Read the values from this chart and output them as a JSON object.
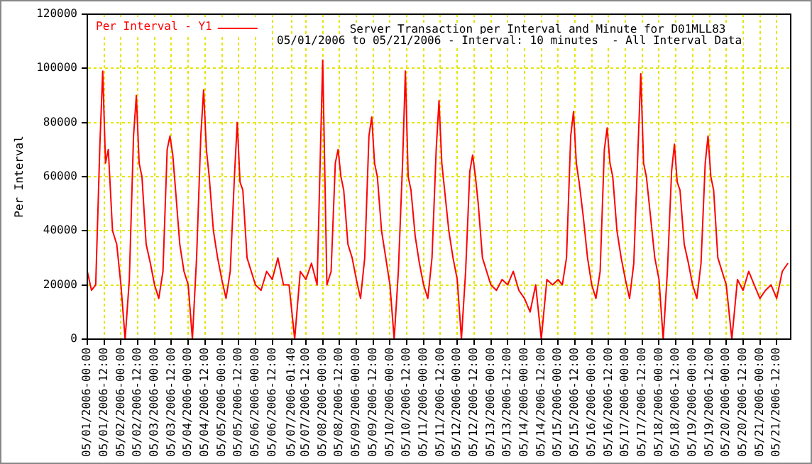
{
  "chart_data": {
    "type": "line",
    "title": "Server Transaction per Interval and Minute for D01MLL83",
    "subtitle": "05/01/2006 to 05/21/2006 - Interval: 10 minutes  - All Interval Data",
    "ylabel": "Per Interval",
    "legend": "top left",
    "grid": true,
    "marker": "none",
    "line_style": "solid",
    "xlim": [
      "2006-05-01T00:00",
      "2006-05-21T22:00"
    ],
    "xticks": [
      {
        "value": "2006-05-01T00:00",
        "label": "05/01/2006-00:00"
      },
      {
        "value": "2006-05-01T12:00",
        "label": "05/01/2006-12:00"
      },
      {
        "value": "2006-05-02T00:00",
        "label": "05/02/2006-00:00"
      },
      {
        "value": "2006-05-02T12:00",
        "label": "05/02/2006-12:00"
      },
      {
        "value": "2006-05-03T00:00",
        "label": "05/03/2006-00:00"
      },
      {
        "value": "2006-05-03T12:00",
        "label": "05/03/2006-12:00"
      },
      {
        "value": "2006-05-04T00:00",
        "label": "05/04/2006-00:00"
      },
      {
        "value": "2006-05-04T12:00",
        "label": "05/04/2006-12:00"
      },
      {
        "value": "2006-05-05T00:00",
        "label": "05/05/2006-00:00"
      },
      {
        "value": "2006-05-05T12:00",
        "label": "05/05/2006-12:00"
      },
      {
        "value": "2006-05-06T00:00",
        "label": "05/06/2006-00:00"
      },
      {
        "value": "2006-05-06T12:00",
        "label": "05/06/2006-12:00"
      },
      {
        "value": "2006-05-07T01:40",
        "label": "05/07/2006-01:40"
      },
      {
        "value": "2006-05-07T12:00",
        "label": "05/07/2006-12:00"
      },
      {
        "value": "2006-05-08T00:00",
        "label": "05/08/2006-00:00"
      },
      {
        "value": "2006-05-08T12:00",
        "label": "05/08/2006-12:00"
      },
      {
        "value": "2006-05-09T00:00",
        "label": "05/09/2006-00:00"
      },
      {
        "value": "2006-05-09T12:00",
        "label": "05/09/2006-12:00"
      },
      {
        "value": "2006-05-10T00:00",
        "label": "05/10/2006-00:00"
      },
      {
        "value": "2006-05-10T12:00",
        "label": "05/10/2006-12:00"
      },
      {
        "value": "2006-05-11T00:00",
        "label": "05/11/2006-00:00"
      },
      {
        "value": "2006-05-11T12:00",
        "label": "05/11/2006-12:00"
      },
      {
        "value": "2006-05-12T00:00",
        "label": "05/12/2006-00:00"
      },
      {
        "value": "2006-05-12T12:00",
        "label": "05/12/2006-12:00"
      },
      {
        "value": "2006-05-13T00:00",
        "label": "05/13/2006-00:00"
      },
      {
        "value": "2006-05-13T12:00",
        "label": "05/13/2006-12:00"
      },
      {
        "value": "2006-05-14T00:00",
        "label": "05/14/2006-00:00"
      },
      {
        "value": "2006-05-14T12:00",
        "label": "05/14/2006-12:00"
      },
      {
        "value": "2006-05-15T00:00",
        "label": "05/15/2006-00:00"
      },
      {
        "value": "2006-05-15T12:00",
        "label": "05/15/2006-12:00"
      },
      {
        "value": "2006-05-16T00:00",
        "label": "05/16/2006-00:00"
      },
      {
        "value": "2006-05-16T12:00",
        "label": "05/16/2006-12:00"
      },
      {
        "value": "2006-05-17T00:00",
        "label": "05/17/2006-00:00"
      },
      {
        "value": "2006-05-17T12:00",
        "label": "05/17/2006-12:00"
      },
      {
        "value": "2006-05-18T00:00",
        "label": "05/18/2006-00:00"
      },
      {
        "value": "2006-05-18T12:00",
        "label": "05/18/2006-12:00"
      },
      {
        "value": "2006-05-19T00:00",
        "label": "05/19/2006-00:00"
      },
      {
        "value": "2006-05-19T12:00",
        "label": "05/19/2006-12:00"
      },
      {
        "value": "2006-05-20T00:00",
        "label": "05/20/2006-00:00"
      },
      {
        "value": "2006-05-20T12:00",
        "label": "05/20/2006-12:00"
      },
      {
        "value": "2006-05-21T00:00",
        "label": "05/21/2006-00:00"
      },
      {
        "value": "2006-05-21T12:00",
        "label": "05/21/2006-12:00"
      }
    ],
    "ylim": [
      0,
      120000
    ],
    "yticks": [
      0,
      20000,
      40000,
      60000,
      80000,
      100000,
      120000
    ],
    "series": [
      {
        "name": "Per Interval - Y1",
        "color": "#ff0000",
        "x": [
          "2006-05-01T00:00",
          "2006-05-01T03:00",
          "2006-05-01T06:00",
          "2006-05-01T09:00",
          "2006-05-01T11:00",
          "2006-05-01T13:00",
          "2006-05-01T15:00",
          "2006-05-01T18:00",
          "2006-05-01T21:00",
          "2006-05-02T00:00",
          "2006-05-02T03:00",
          "2006-05-02T06:00",
          "2006-05-02T09:00",
          "2006-05-02T11:00",
          "2006-05-02T13:00",
          "2006-05-02T15:00",
          "2006-05-02T18:00",
          "2006-05-02T21:00",
          "2006-05-03T00:00",
          "2006-05-03T03:00",
          "2006-05-03T06:00",
          "2006-05-03T09:00",
          "2006-05-03T11:00",
          "2006-05-03T13:00",
          "2006-05-03T15:00",
          "2006-05-03T18:00",
          "2006-05-03T21:00",
          "2006-05-04T00:00",
          "2006-05-04T03:00",
          "2006-05-04T06:00",
          "2006-05-04T09:00",
          "2006-05-04T11:00",
          "2006-05-04T13:00",
          "2006-05-04T15:00",
          "2006-05-04T18:00",
          "2006-05-04T21:00",
          "2006-05-05T00:00",
          "2006-05-05T03:00",
          "2006-05-05T06:00",
          "2006-05-05T09:00",
          "2006-05-05T11:00",
          "2006-05-05T13:00",
          "2006-05-05T15:00",
          "2006-05-05T18:00",
          "2006-05-05T21:00",
          "2006-05-06T00:00",
          "2006-05-06T04:00",
          "2006-05-06T08:00",
          "2006-05-06T12:00",
          "2006-05-06T16:00",
          "2006-05-06T20:00",
          "2006-05-07T00:00",
          "2006-05-07T04:00",
          "2006-05-07T08:00",
          "2006-05-07T12:00",
          "2006-05-07T16:00",
          "2006-05-07T20:00",
          "2006-05-08T00:00",
          "2006-05-08T03:00",
          "2006-05-08T06:00",
          "2006-05-08T09:00",
          "2006-05-08T11:00",
          "2006-05-08T13:00",
          "2006-05-08T15:00",
          "2006-05-08T18:00",
          "2006-05-08T21:00",
          "2006-05-09T00:00",
          "2006-05-09T03:00",
          "2006-05-09T06:00",
          "2006-05-09T09:00",
          "2006-05-09T11:00",
          "2006-05-09T13:00",
          "2006-05-09T15:00",
          "2006-05-09T18:00",
          "2006-05-09T21:00",
          "2006-05-10T00:00",
          "2006-05-10T03:00",
          "2006-05-10T06:00",
          "2006-05-10T09:00",
          "2006-05-10T11:00",
          "2006-05-10T13:00",
          "2006-05-10T15:00",
          "2006-05-10T18:00",
          "2006-05-10T21:00",
          "2006-05-11T00:00",
          "2006-05-11T03:00",
          "2006-05-11T06:00",
          "2006-05-11T09:00",
          "2006-05-11T11:00",
          "2006-05-11T13:00",
          "2006-05-11T15:00",
          "2006-05-11T18:00",
          "2006-05-11T21:00",
          "2006-05-12T00:00",
          "2006-05-12T03:00",
          "2006-05-12T06:00",
          "2006-05-12T09:00",
          "2006-05-12T11:00",
          "2006-05-12T13:00",
          "2006-05-12T15:00",
          "2006-05-12T18:00",
          "2006-05-12T21:00",
          "2006-05-13T00:00",
          "2006-05-13T04:00",
          "2006-05-13T08:00",
          "2006-05-13T12:00",
          "2006-05-13T16:00",
          "2006-05-13T20:00",
          "2006-05-14T00:00",
          "2006-05-14T04:00",
          "2006-05-14T08:00",
          "2006-05-14T12:00",
          "2006-05-14T16:00",
          "2006-05-14T20:00",
          "2006-05-15T00:00",
          "2006-05-15T03:00",
          "2006-05-15T06:00",
          "2006-05-15T09:00",
          "2006-05-15T11:00",
          "2006-05-15T13:00",
          "2006-05-15T15:00",
          "2006-05-15T18:00",
          "2006-05-15T21:00",
          "2006-05-16T00:00",
          "2006-05-16T03:00",
          "2006-05-16T06:00",
          "2006-05-16T09:00",
          "2006-05-16T11:00",
          "2006-05-16T13:00",
          "2006-05-16T15:00",
          "2006-05-16T18:00",
          "2006-05-16T21:00",
          "2006-05-17T00:00",
          "2006-05-17T03:00",
          "2006-05-17T06:00",
          "2006-05-17T09:00",
          "2006-05-17T11:00",
          "2006-05-17T13:00",
          "2006-05-17T15:00",
          "2006-05-17T18:00",
          "2006-05-17T21:00",
          "2006-05-18T00:00",
          "2006-05-18T03:00",
          "2006-05-18T06:00",
          "2006-05-18T09:00",
          "2006-05-18T11:00",
          "2006-05-18T13:00",
          "2006-05-18T15:00",
          "2006-05-18T18:00",
          "2006-05-18T21:00",
          "2006-05-19T00:00",
          "2006-05-19T03:00",
          "2006-05-19T06:00",
          "2006-05-19T09:00",
          "2006-05-19T11:00",
          "2006-05-19T13:00",
          "2006-05-19T15:00",
          "2006-05-19T18:00",
          "2006-05-19T21:00",
          "2006-05-20T00:00",
          "2006-05-20T04:00",
          "2006-05-20T08:00",
          "2006-05-20T12:00",
          "2006-05-20T16:00",
          "2006-05-20T20:00",
          "2006-05-21T00:00",
          "2006-05-21T04:00",
          "2006-05-21T08:00",
          "2006-05-21T12:00",
          "2006-05-21T16:00",
          "2006-05-21T20:00"
        ],
        "values": [
          25000,
          18000,
          20000,
          72000,
          99000,
          65000,
          70000,
          40000,
          35000,
          20000,
          0,
          22000,
          75000,
          90000,
          65000,
          60000,
          35000,
          28000,
          20000,
          15000,
          25000,
          70000,
          75000,
          68000,
          55000,
          35000,
          25000,
          20000,
          0,
          30000,
          75000,
          92000,
          70000,
          60000,
          40000,
          30000,
          22000,
          15000,
          25000,
          60000,
          80000,
          58000,
          55000,
          30000,
          25000,
          20000,
          18000,
          25000,
          22000,
          30000,
          20000,
          20000,
          0,
          25000,
          22000,
          28000,
          20000,
          103000,
          20000,
          25000,
          65000,
          70000,
          60000,
          55000,
          35000,
          30000,
          22000,
          15000,
          30000,
          75000,
          82000,
          65000,
          60000,
          40000,
          30000,
          20000,
          0,
          25000,
          65000,
          99000,
          60000,
          55000,
          38000,
          28000,
          20000,
          15000,
          30000,
          70000,
          88000,
          65000,
          55000,
          40000,
          30000,
          22000,
          0,
          25000,
          62000,
          68000,
          60000,
          50000,
          30000,
          25000,
          20000,
          18000,
          22000,
          20000,
          25000,
          18000,
          15000,
          10000,
          20000,
          0,
          22000,
          20000,
          22000,
          20000,
          30000,
          75000,
          84000,
          65000,
          58000,
          45000,
          30000,
          20000,
          15000,
          25000,
          70000,
          78000,
          65000,
          60000,
          40000,
          30000,
          22000,
          15000,
          28000,
          70000,
          98000,
          65000,
          60000,
          45000,
          30000,
          22000,
          0,
          25000,
          62000,
          72000,
          58000,
          55000,
          35000,
          28000,
          20000,
          15000,
          28000,
          65000,
          75000,
          60000,
          55000,
          30000,
          25000,
          20000,
          0,
          22000,
          18000,
          25000,
          20000,
          15000,
          18000,
          20000,
          15000,
          25000,
          28000
        ]
      }
    ]
  }
}
